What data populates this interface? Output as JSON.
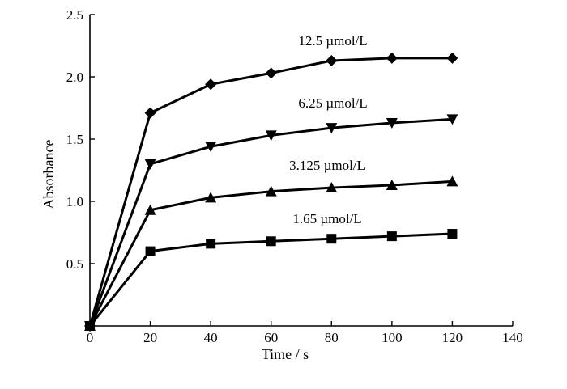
{
  "chart_data": {
    "type": "line",
    "xlabel": "Time / s",
    "ylabel": "Absorbance",
    "xlim": [
      0,
      140
    ],
    "ylim": [
      0,
      2.5
    ],
    "xticks": [
      0,
      20,
      40,
      60,
      80,
      100,
      120,
      140
    ],
    "yticks": [
      0.5,
      1.0,
      1.5,
      2.0,
      2.5
    ],
    "xtick_labels": [
      "0",
      "20",
      "40",
      "60",
      "80",
      "100",
      "120",
      "140"
    ],
    "ytick_labels": [
      "0.5",
      "1.0",
      "1.5",
      "2.0",
      "2.5"
    ],
    "legend": "inline-labels",
    "grid": false,
    "series": [
      {
        "name": "12.5 µmol/L",
        "marker": "diamond",
        "x": [
          0,
          20,
          40,
          60,
          80,
          100,
          120
        ],
        "values": [
          0.0,
          1.71,
          1.94,
          2.03,
          2.13,
          2.15,
          2.15
        ]
      },
      {
        "name": "6.25 µmol/L",
        "marker": "triangle-down",
        "x": [
          0,
          20,
          40,
          60,
          80,
          100,
          120
        ],
        "values": [
          0.0,
          1.3,
          1.44,
          1.53,
          1.59,
          1.63,
          1.66
        ]
      },
      {
        "name": "3.125 µmol/L",
        "marker": "triangle-up",
        "x": [
          0,
          20,
          40,
          60,
          80,
          100,
          120
        ],
        "values": [
          0.0,
          0.93,
          1.03,
          1.08,
          1.11,
          1.13,
          1.16
        ]
      },
      {
        "name": "1.65 µmol/L",
        "marker": "square",
        "x": [
          0,
          20,
          40,
          60,
          80,
          100,
          120
        ],
        "values": [
          0.0,
          0.6,
          0.66,
          0.68,
          0.7,
          0.72,
          0.74
        ]
      }
    ]
  }
}
